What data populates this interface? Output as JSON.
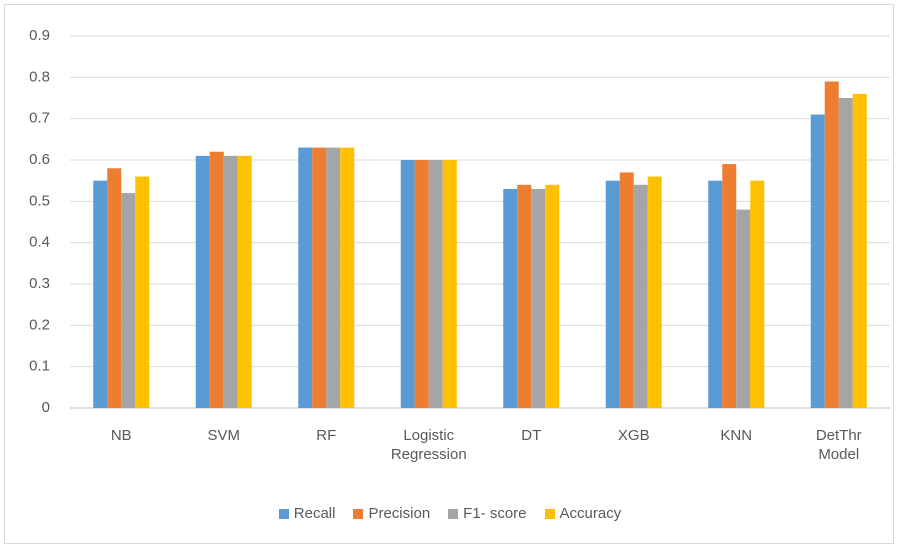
{
  "chart_data": {
    "type": "bar",
    "categories": [
      "NB",
      "SVM",
      "RF",
      "Logistic Regression",
      "DT",
      "XGB",
      "KNN",
      "DetThr Model"
    ],
    "series": [
      {
        "name": "Recall",
        "color": "#5b9bd5",
        "values": [
          0.55,
          0.61,
          0.63,
          0.6,
          0.53,
          0.55,
          0.55,
          0.71
        ]
      },
      {
        "name": "Precision",
        "color": "#ed7d31",
        "values": [
          0.58,
          0.62,
          0.63,
          0.6,
          0.54,
          0.57,
          0.59,
          0.79
        ]
      },
      {
        "name": "F1- score",
        "color": "#a5a5a5",
        "values": [
          0.52,
          0.61,
          0.63,
          0.6,
          0.53,
          0.54,
          0.48,
          0.75
        ]
      },
      {
        "name": "Accuracy",
        "color": "#ffc000",
        "values": [
          0.56,
          0.61,
          0.63,
          0.6,
          0.54,
          0.56,
          0.55,
          0.76
        ]
      }
    ],
    "ylim": [
      0,
      0.9
    ],
    "yticks": [
      0,
      0.1,
      0.2,
      0.3,
      0.4,
      0.5,
      0.6,
      0.7,
      0.8,
      0.9
    ],
    "grid": true,
    "legend": "bottom"
  }
}
